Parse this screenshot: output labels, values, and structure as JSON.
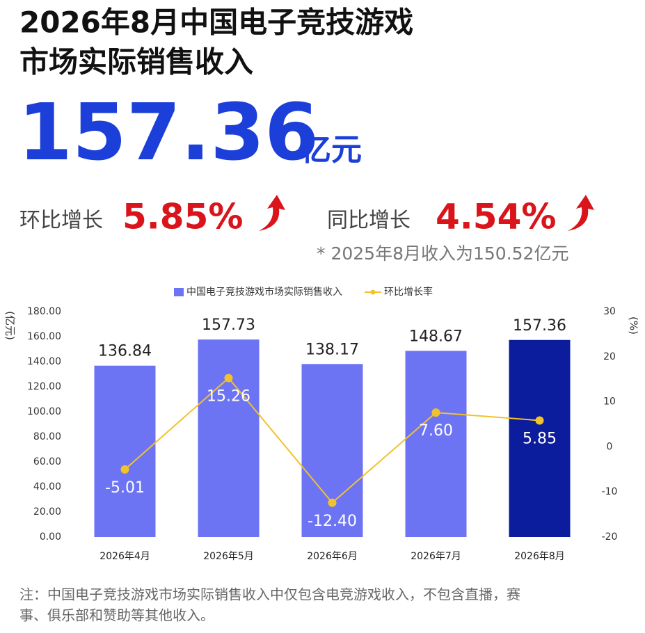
{
  "header": {
    "title_lines": [
      "2026年8月中国电子竞技游戏",
      "市场实际销售收入"
    ],
    "big_number": "157.36",
    "big_unit": "亿元",
    "stats": [
      {
        "label": "环比增长",
        "value": "5.85%"
      },
      {
        "label": "同比增长",
        "value": "4.54%"
      }
    ],
    "footnote": "* 2025年8月收入为150.52亿元"
  },
  "chart_data": {
    "type": "bar",
    "categories": [
      "2026年4月",
      "2026年5月",
      "2026年6月",
      "2026年7月",
      "2026年8月"
    ],
    "series": [
      {
        "name": "中国电子竞技游戏市场实际销售收入",
        "type": "bar",
        "color": "#6d74f4",
        "colors": [
          "#6d74f4",
          "#6d74f4",
          "#6d74f4",
          "#6d74f4",
          "#0b1c9c"
        ],
        "values": [
          136.84,
          157.73,
          138.17,
          148.67,
          157.36
        ]
      },
      {
        "name": "环比增长率",
        "type": "line",
        "axis": "y2",
        "color": "#f2c22a",
        "values": [
          -5.01,
          15.26,
          -12.4,
          7.6,
          5.85
        ],
        "value_labels": [
          "-5.01",
          "15.26",
          "-12.40",
          "7.60",
          "5.85"
        ]
      }
    ],
    "y_label": "(亿元)",
    "y2_label": "(%)",
    "ylim": [
      0,
      180
    ],
    "yticks": [
      {
        "value": 0,
        "label": "0.00"
      },
      {
        "value": 20,
        "label": "20.00"
      },
      {
        "value": 40,
        "label": "40.00"
      },
      {
        "value": 60,
        "label": "60.00"
      },
      {
        "value": 80,
        "label": "80.00"
      },
      {
        "value": 100,
        "label": "100.00"
      },
      {
        "value": 120,
        "label": "120.00"
      },
      {
        "value": 140,
        "label": "140.00"
      },
      {
        "value": 160,
        "label": "160.00"
      },
      {
        "value": 180,
        "label": "180.00"
      }
    ],
    "y2lim": [
      -20,
      30
    ],
    "y2ticks": [
      -20,
      -10,
      0,
      10,
      20,
      30
    ],
    "legend": "top",
    "grid": false
  },
  "note_lines": [
    "注：中国电子竞技游戏市场实际销售收入中仅包含电竞游戏收入，不包含直播，赛",
    "事、俱乐部和赞助等其他收入。"
  ]
}
